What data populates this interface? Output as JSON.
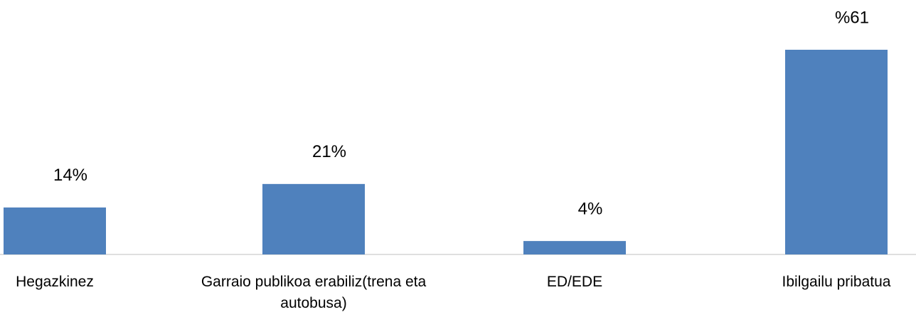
{
  "chart_data": {
    "type": "bar",
    "categories": [
      "Hegazkinez",
      "Garraio publikoa erabiliz(trena eta autobusa)",
      "ED/EDE",
      "Ibilgailu pribatua"
    ],
    "values": [
      14,
      21,
      4,
      61
    ],
    "value_labels": [
      "14%",
      "21%",
      "4%",
      "%61"
    ],
    "color": "#4f81bd"
  }
}
